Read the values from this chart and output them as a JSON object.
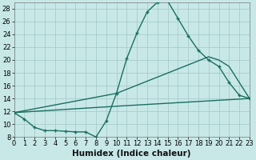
{
  "xlabel": "Humidex (Indice chaleur)",
  "background_color": "#c8e8e8",
  "grid_color": "#a8cccc",
  "line_color": "#1a6e60",
  "xlim": [
    0,
    23
  ],
  "ylim": [
    8,
    29
  ],
  "xticks": [
    0,
    1,
    2,
    3,
    4,
    5,
    6,
    7,
    8,
    9,
    10,
    11,
    12,
    13,
    14,
    15,
    16,
    17,
    18,
    19,
    20,
    21,
    22,
    23
  ],
  "yticks": [
    8,
    10,
    12,
    14,
    16,
    18,
    20,
    22,
    24,
    26,
    28
  ],
  "curve1_x": [
    0,
    1,
    2,
    3,
    4,
    5,
    6,
    7,
    8,
    9,
    10,
    11,
    12,
    13,
    14,
    15,
    16,
    17,
    18,
    19,
    20,
    21,
    22,
    23
  ],
  "curve1_y": [
    11.8,
    10.8,
    9.5,
    9.0,
    9.0,
    8.9,
    8.8,
    8.8,
    8.0,
    10.5,
    14.8,
    20.2,
    24.2,
    27.5,
    29.0,
    29.2,
    26.5,
    23.8,
    21.5,
    20.0,
    19.0,
    16.5,
    14.5,
    14.0
  ],
  "curve2_x": [
    0,
    10,
    19,
    20,
    21,
    22,
    23
  ],
  "curve2_y": [
    11.8,
    14.8,
    20.5,
    20.0,
    19.0,
    16.5,
    14.0
  ],
  "curve3_x": [
    0,
    10,
    23
  ],
  "curve3_y": [
    11.8,
    12.8,
    14.0
  ],
  "tick_fontsize": 6,
  "xlabel_fontsize": 7.5
}
